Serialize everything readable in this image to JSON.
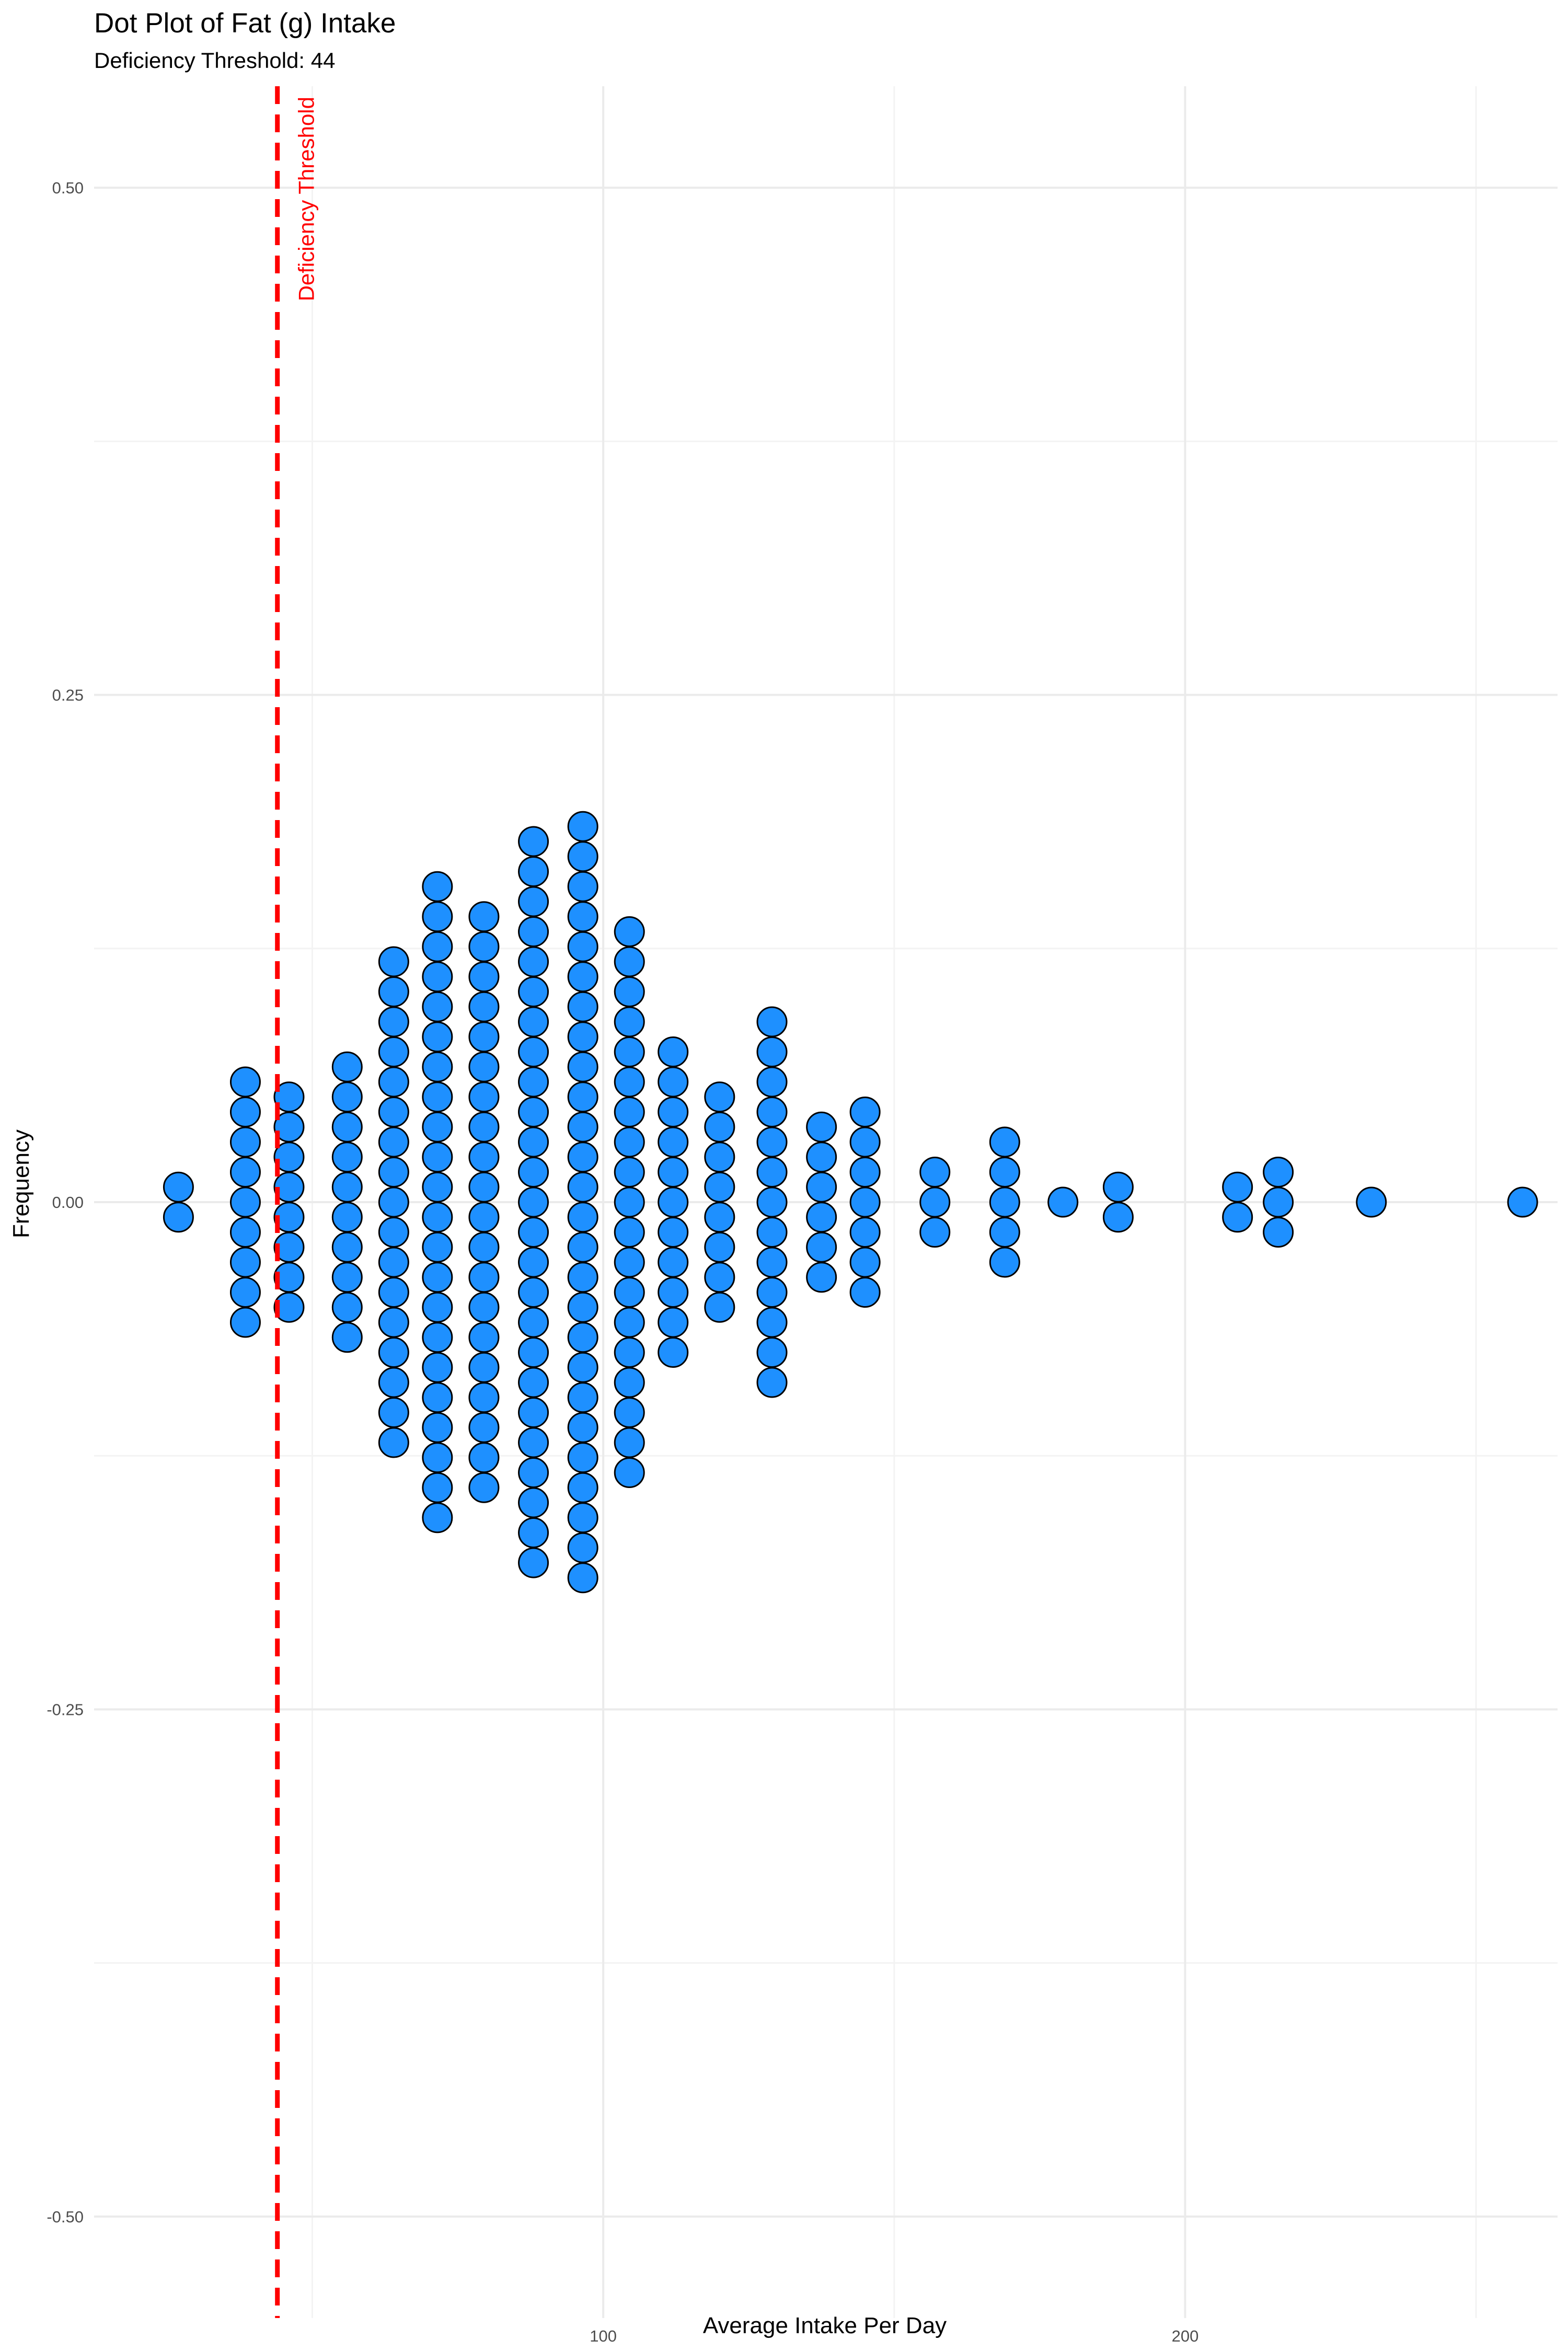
{
  "chart_data": {
    "type": "dotplot",
    "title": "Dot Plot of Fat (g) Intake",
    "subtitle": "Deficiency Threshold: 44",
    "xlabel": "Average Intake Per Day",
    "ylabel": "Frequency",
    "xlim": [
      12.5,
      264
    ],
    "ylim": [
      -0.55,
      0.55
    ],
    "x_ticks": [
      100,
      200
    ],
    "x_tick_labels": [
      "100",
      "200"
    ],
    "y_ticks": [
      -0.5,
      -0.25,
      0,
      0.25,
      0.5
    ],
    "y_tick_labels": [
      "-0.50",
      "-0.25",
      "0.00",
      "0.25",
      "0.50"
    ],
    "grid": true,
    "dot_color": "#1E90FF",
    "dot_outline": "#000000",
    "threshold": {
      "value": 44,
      "label": "Deficiency Threshold",
      "color": "#FF0000",
      "linestyle": "dashed"
    },
    "bins": [
      {
        "x": 27,
        "count": 2
      },
      {
        "x": 38.5,
        "count": 9
      },
      {
        "x": 46,
        "count": 8
      },
      {
        "x": 56,
        "count": 10
      },
      {
        "x": 64,
        "count": 17
      },
      {
        "x": 71.5,
        "count": 22
      },
      {
        "x": 79.5,
        "count": 20
      },
      {
        "x": 88,
        "count": 25
      },
      {
        "x": 96.5,
        "count": 26
      },
      {
        "x": 104.5,
        "count": 19
      },
      {
        "x": 112,
        "count": 11
      },
      {
        "x": 120,
        "count": 8
      },
      {
        "x": 129,
        "count": 13
      },
      {
        "x": 137.5,
        "count": 6
      },
      {
        "x": 145,
        "count": 7
      },
      {
        "x": 157,
        "count": 3
      },
      {
        "x": 169,
        "count": 5
      },
      {
        "x": 179,
        "count": 1
      },
      {
        "x": 188.5,
        "count": 2
      },
      {
        "x": 209,
        "count": 2
      },
      {
        "x": 216,
        "count": 3
      },
      {
        "x": 232,
        "count": 1
      },
      {
        "x": 258,
        "count": 1
      }
    ]
  }
}
